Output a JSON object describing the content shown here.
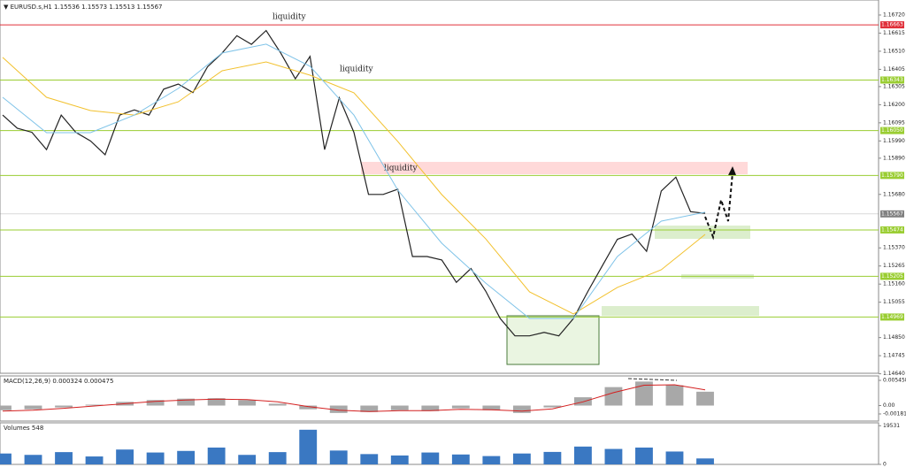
{
  "header": "▼ EURUSD.s,H1  1.15536 1.15573 1.15513 1.15567",
  "chart_data": [
    {
      "type": "line",
      "ylim": [
        1.14643,
        1.16807
      ],
      "yticks": [
        {
          "value": 1.1672,
          "label": "1.16720"
        },
        1.16615,
        {
          "value": 1.1651,
          "label": "1.16510"
        },
        1.16405,
        1.16305,
        {
          "value": 1.162,
          "label": "1.16200"
        },
        1.16095,
        {
          "value": 1.1599,
          "label": "1.15990"
        },
        {
          "value": 1.1589,
          "label": "1.15890"
        },
        {
          "value": 1.1568,
          "label": "1.15680"
        },
        {
          "value": 1.1537,
          "label": "1.15370"
        },
        1.15265,
        {
          "value": 1.1516,
          "label": "1.15160"
        },
        1.15055,
        {
          "value": 1.1485,
          "label": "1.14850"
        },
        1.14745,
        {
          "value": 1.1464,
          "label": "1.14640"
        }
      ],
      "levels": [
        1.16663,
        1.16343,
        {
          "value": 1.1605,
          "label": "1.16050"
        },
        {
          "value": 1.1579,
          "label": "1.15790"
        },
        1.15567,
        1.15474,
        1.15205,
        1.14969
      ],
      "level_colors": [
        "#e0303a",
        "#9acd32",
        "#9acd32",
        "#9acd32",
        "#808080",
        "#9acd32",
        "#9acd32",
        "#9acd32"
      ],
      "annotations": [
        "liquidity",
        "liquidity",
        "liquidity"
      ],
      "series": [
        {
          "color": "#222222",
          "values": [
            1.1614,
            1.16064,
            1.1604,
            1.1594,
            1.1614,
            1.1604,
            1.1599,
            1.1591,
            1.1614,
            1.1617,
            1.1614,
            1.1629,
            1.1632,
            1.1627,
            1.1642,
            1.165,
            1.166,
            1.1655,
            1.1663,
            1.165,
            1.1635,
            1.1648,
            1.1594,
            1.1624,
            1.1604,
            1.1568,
            1.1568,
            1.1571,
            1.1532,
            1.1532,
            1.153,
            1.1517,
            1.1525,
            1.1512,
            1.1496,
            1.1486,
            1.1486,
            1.1488,
            1.1486,
            1.1496,
            1.1512,
            1.1527,
            1.1542,
            1.1545,
            1.1535,
            1.157,
            1.1578,
            1.1558,
            1.1557
          ]
        },
        {
          "color": "#f2c12e",
          "values": [
            1.16474,
            1.16243,
            1.16166,
            1.1614,
            1.16217,
            1.16397,
            1.16448,
            1.16371,
            1.16269,
            1.15987,
            1.15679,
            1.15423,
            1.15115,
            1.14987,
            1.15141,
            1.15243,
            1.15448
          ]
        },
        {
          "color": "#7fc3e8",
          "values": [
            1.16243,
            1.16038,
            1.16038,
            1.1614,
            1.16294,
            1.165,
            1.16551,
            1.16423,
            1.1614,
            1.15705,
            1.15397,
            1.15166,
            1.14961,
            1.14961,
            1.1532,
            1.15525,
            1.15577
          ]
        }
      ]
    },
    {
      "type": "macd",
      "title": "MACD(12,26,9) 0.000324 0.000475",
      "ylim": [
        -0.00335,
        0.00642
      ],
      "yticks": [
        0.005458,
        {
          "value": 0,
          "label": "0.00"
        },
        -0.001814
      ],
      "series": [
        {
          "type": "bar",
          "color": "#a8a8a8",
          "values": [
            -0.001,
            -0.0008,
            -0.0004,
            0.0002,
            0.0008,
            0.0012,
            0.0015,
            0.0016,
            0.0012,
            0.0004,
            -0.0008,
            -0.0016,
            -0.0014,
            -0.001,
            -0.0012,
            -0.0006,
            -0.001,
            -0.0016,
            -0.0004,
            0.0018,
            0.004,
            0.0052,
            0.0044,
            0.003
          ]
        },
        {
          "type": "line",
          "color": "#d42020",
          "values": [
            -0.0012,
            -0.001,
            -0.0006,
            -0.0001,
            0.0004,
            0.0009,
            0.0012,
            0.0014,
            0.0013,
            0.0008,
            -0.0002,
            -0.001,
            -0.0013,
            -0.0011,
            -0.0011,
            -0.0008,
            -0.0009,
            -0.0012,
            -0.0007,
            0.0008,
            0.0028,
            0.0044,
            0.0045,
            0.0034
          ]
        }
      ]
    },
    {
      "type": "bar",
      "title": "Volumes 548",
      "ylim": [
        0,
        21000
      ],
      "yticks": [
        19531,
        0
      ],
      "color": "#3a78c2",
      "values": [
        5500,
        4800,
        6200,
        4000,
        7500,
        6000,
        6800,
        8500,
        4800,
        6200,
        17500,
        7000,
        5200,
        4500,
        6000,
        5000,
        4200,
        5500,
        6300,
        9000,
        7800,
        8500,
        6500,
        3000
      ]
    }
  ]
}
